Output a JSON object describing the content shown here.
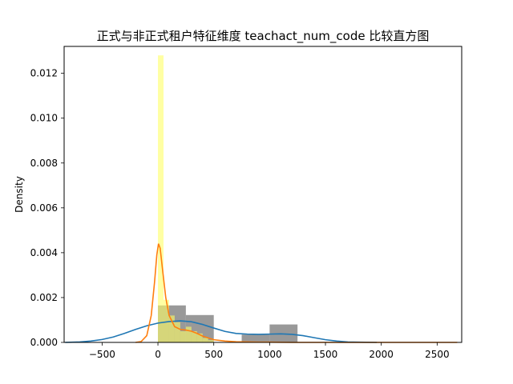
{
  "chart_data": {
    "type": "histogram",
    "title": "正式与非正式租户特征维度 teachact_num_code 比较直方图",
    "xlabel": "",
    "ylabel": "Density",
    "xlim": [
      -840,
      2720
    ],
    "ylim": [
      0,
      0.0132
    ],
    "xticks": [
      -500,
      0,
      500,
      1000,
      1500,
      2000,
      2500
    ],
    "xtick_labels": [
      "−500",
      "0",
      "500",
      "1000",
      "1500",
      "2000",
      "2500"
    ],
    "yticks": [
      0,
      0.002,
      0.004,
      0.006,
      0.008,
      0.01,
      0.012
    ],
    "ytick_labels": [
      "0.000",
      "0.002",
      "0.004",
      "0.006",
      "0.008",
      "0.010",
      "0.012"
    ],
    "grid": false,
    "legend": "none",
    "histograms": [
      {
        "color": "#808080",
        "opacity": 0.8,
        "bins": [
          {
            "x0": 0,
            "x1": 250,
            "density": 0.00165
          },
          {
            "x0": 250,
            "x1": 500,
            "density": 0.00122
          },
          {
            "x0": 750,
            "x1": 1000,
            "density": 0.00035
          },
          {
            "x0": 1000,
            "x1": 1250,
            "density": 0.0008
          }
        ]
      },
      {
        "color": "#ffff66",
        "opacity": 0.6,
        "bins": [
          {
            "x0": 0,
            "x1": 50,
            "density": 0.0128
          },
          {
            "x0": 50,
            "x1": 100,
            "density": 0.0019
          },
          {
            "x0": 100,
            "x1": 150,
            "density": 0.0012
          },
          {
            "x0": 150,
            "x1": 200,
            "density": 0.0009
          },
          {
            "x0": 200,
            "x1": 250,
            "density": 0.0005
          },
          {
            "x0": 250,
            "x1": 300,
            "density": 0.0007
          },
          {
            "x0": 300,
            "x1": 350,
            "density": 0.0005
          },
          {
            "x0": 350,
            "x1": 400,
            "density": 0.0004
          },
          {
            "x0": 400,
            "x1": 450,
            "density": 0.0002
          },
          {
            "x0": 450,
            "x1": 500,
            "density": 0.0001
          }
        ]
      }
    ],
    "kde": [
      {
        "color": "#1f77b4",
        "points": [
          [
            -830,
            0
          ],
          [
            -700,
            2e-05
          ],
          [
            -600,
            6e-05
          ],
          [
            -500,
            0.00013
          ],
          [
            -400,
            0.00024
          ],
          [
            -300,
            0.0004
          ],
          [
            -200,
            0.00058
          ],
          [
            -100,
            0.00074
          ],
          [
            0,
            0.00086
          ],
          [
            100,
            0.00093
          ],
          [
            200,
            0.00096
          ],
          [
            300,
            0.00092
          ],
          [
            400,
            0.0008
          ],
          [
            500,
            0.00064
          ],
          [
            600,
            0.00049
          ],
          [
            700,
            0.0004
          ],
          [
            800,
            0.00037
          ],
          [
            900,
            0.00036
          ],
          [
            1000,
            0.00037
          ],
          [
            1100,
            0.00038
          ],
          [
            1200,
            0.00036
          ],
          [
            1300,
            0.0003
          ],
          [
            1400,
            0.00021
          ],
          [
            1500,
            0.00012
          ],
          [
            1600,
            6e-05
          ],
          [
            1700,
            2e-05
          ],
          [
            1800,
            1e-05
          ],
          [
            1960,
            0
          ]
        ]
      },
      {
        "color": "#ff7f0e",
        "points": [
          [
            -200,
            0
          ],
          [
            -150,
            4e-05
          ],
          [
            -100,
            0.0003
          ],
          [
            -60,
            0.0012
          ],
          [
            -30,
            0.0027
          ],
          [
            -10,
            0.0039
          ],
          [
            5,
            0.0044
          ],
          [
            20,
            0.0042
          ],
          [
            40,
            0.0033
          ],
          [
            70,
            0.002
          ],
          [
            100,
            0.0012
          ],
          [
            150,
            0.0007
          ],
          [
            200,
            0.00058
          ],
          [
            250,
            0.00055
          ],
          [
            300,
            0.0005
          ],
          [
            350,
            0.0004
          ],
          [
            400,
            0.00028
          ],
          [
            500,
            0.00012
          ],
          [
            600,
            6e-05
          ],
          [
            700,
            3e-05
          ],
          [
            800,
            2e-05
          ],
          [
            900,
            1e-05
          ],
          [
            1000,
            1e-05
          ],
          [
            1200,
            0
          ],
          [
            1500,
            0
          ],
          [
            2000,
            0
          ],
          [
            2680,
            0
          ]
        ]
      }
    ]
  }
}
